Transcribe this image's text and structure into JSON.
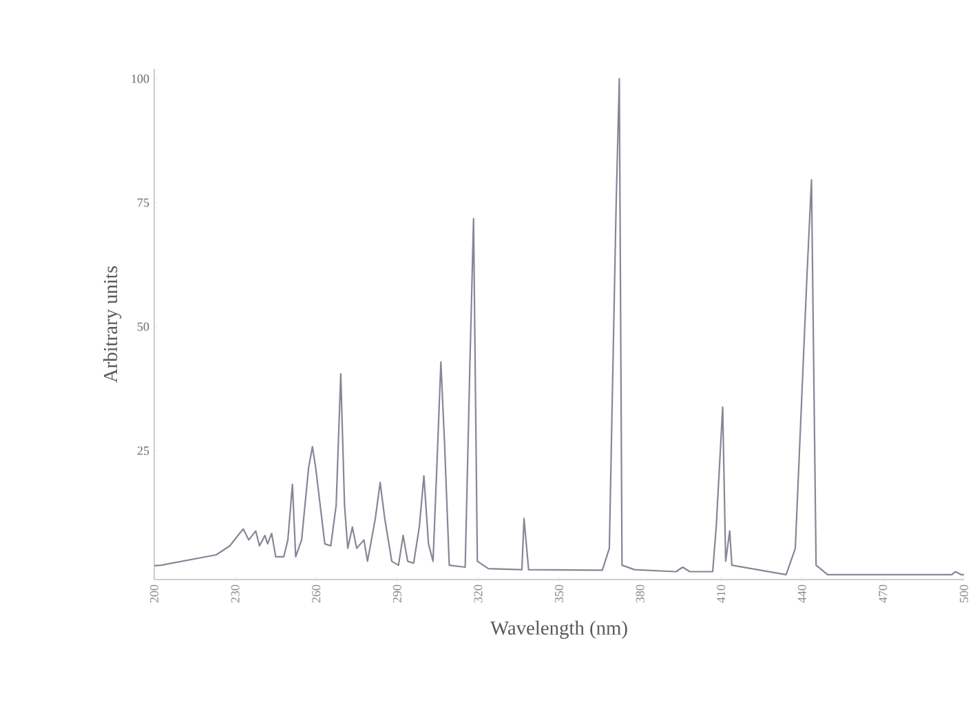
{
  "chart_data": {
    "type": "line",
    "xlabel": "Wavelength (nm)",
    "ylabel": "Arbitrary units",
    "xlim": [
      200,
      500
    ],
    "ylim": [
      -1,
      102
    ],
    "xticks": [
      200,
      230,
      260,
      290,
      320,
      350,
      380,
      410,
      440,
      470,
      500
    ],
    "yticks": [
      25,
      50,
      75,
      100
    ],
    "grid": false,
    "marker": "none",
    "line_style": "solid",
    "series": [
      {
        "color": "#8a8496",
        "x": [
          200,
          202.6,
          223,
          228,
          231.6,
          233,
          235,
          237.6,
          239,
          241,
          242,
          243.5,
          245,
          248,
          249.5,
          251.2,
          252.4,
          254.6,
          257.2,
          258.6,
          259.8,
          263.2,
          265.4,
          267.4,
          269.1,
          270.5,
          271.7,
          273.4,
          275,
          277.7,
          279,
          280.2,
          281.9,
          283.7,
          285.4,
          288,
          290.5,
          292.2,
          293.9,
          296.1,
          298.2,
          299.9,
          301.6,
          303.3,
          305,
          306.2,
          307.6,
          309.3,
          315.2,
          316.9,
          318.3,
          319.7,
          323.8,
          336.2,
          337,
          338.7,
          366,
          368.6,
          371.1,
          372.3,
          373.3,
          378,
          393.3,
          395.8,
          398.4,
          406.9,
          408.2,
          410.6,
          411.7,
          413.2,
          414,
          434.1,
          437.5,
          441.8,
          443.5,
          445.2,
          449.5,
          495.5,
          496.8,
          498.9,
          500
        ],
        "values": [
          1.8,
          1.9,
          4,
          5.8,
          8.3,
          9.2,
          7,
          8.8,
          5.8,
          7.9,
          6.2,
          8.3,
          3.6,
          3.6,
          7,
          18.2,
          3.6,
          7,
          21.6,
          25.8,
          21.6,
          6.2,
          5.8,
          14,
          40.5,
          14,
          5.3,
          9.6,
          5.3,
          7,
          2.7,
          6.2,
          11.3,
          18.6,
          11.3,
          2.7,
          1.9,
          7.9,
          2.7,
          2.3,
          9.6,
          19.9,
          6.2,
          2.7,
          25.9,
          42.9,
          25.9,
          1.9,
          1.5,
          41.4,
          71.8,
          2.7,
          1.2,
          1,
          11.3,
          1,
          0.9,
          5.3,
          74,
          100,
          1.9,
          1,
          0.6,
          1.5,
          0.6,
          0.6,
          9.6,
          33.8,
          2.7,
          8.8,
          1.9,
          0,
          5.3,
          60,
          79.6,
          1.9,
          0,
          0,
          0.6,
          0,
          0
        ]
      }
    ]
  }
}
